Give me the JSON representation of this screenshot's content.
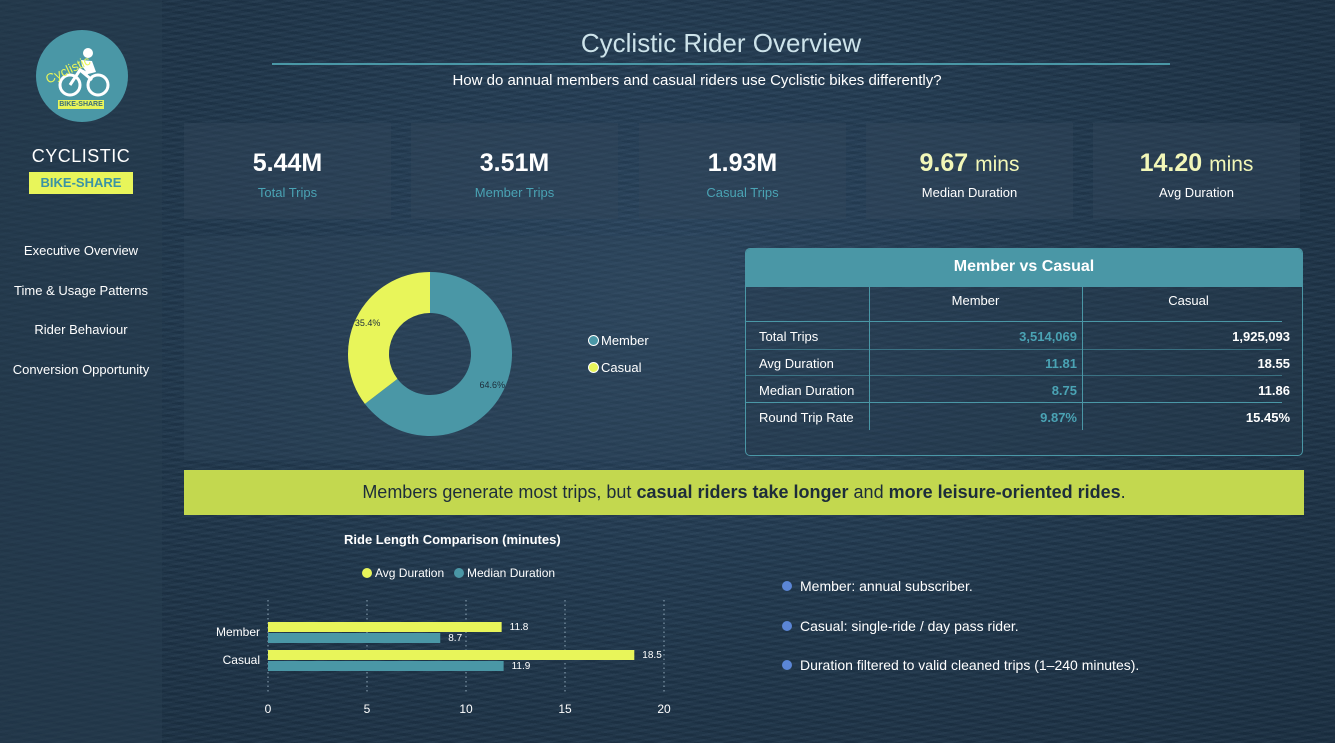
{
  "sidebar": {
    "logo_text": "Cyclistic",
    "logo_tag": "BIKE-SHARE",
    "brand": "CYCLISTIC",
    "badge": "BIKE-SHARE",
    "nav": [
      {
        "label": "Executive Overview"
      },
      {
        "label": "Time & Usage Patterns"
      },
      {
        "label": "Rider Behaviour"
      },
      {
        "label": "Conversion Opportunity"
      }
    ]
  },
  "header": {
    "title": "Cyclistic Rider Overview",
    "subtitle": "How do annual members and casual riders use Cyclistic bikes differently?"
  },
  "kpis": [
    {
      "value": "5.44M",
      "unit": "",
      "label": "Total Trips"
    },
    {
      "value": "3.51M",
      "unit": "",
      "label": "Member Trips"
    },
    {
      "value": "1.93M",
      "unit": "",
      "label": "Casual Trips"
    },
    {
      "value": "9.67",
      "unit": "mins",
      "label": "Median Duration"
    },
    {
      "value": "14.20",
      "unit": "mins",
      "label": "Avg Duration"
    }
  ],
  "donut": {
    "slices": [
      {
        "name": "Member",
        "value": 64.6,
        "label": "64.6%",
        "color": "#4a97a6"
      },
      {
        "name": "Casual",
        "value": 35.4,
        "label": "35.4%",
        "color": "#e8f55a"
      }
    ],
    "legend": [
      "Member",
      "Casual"
    ]
  },
  "comparison_table": {
    "title": "Member vs Casual",
    "columns": [
      "Member",
      "Casual"
    ],
    "rows": [
      {
        "label": "Total Trips",
        "member": "3,514,069",
        "casual": "1,925,093"
      },
      {
        "label": "Avg Duration",
        "member": "11.81",
        "casual": "18.55"
      },
      {
        "label": "Median Duration",
        "member": "8.75",
        "casual": "11.86"
      },
      {
        "label": "Round Trip Rate",
        "member": "9.87%",
        "casual": "15.45%"
      }
    ]
  },
  "banner": {
    "part1": "Members generate most trips, but ",
    "bold1": "casual riders take longer",
    "part2": " and ",
    "bold2": "more leisure-oriented rides",
    "part3": "."
  },
  "chart_data": {
    "type": "bar",
    "orientation": "horizontal",
    "title": "Ride Length Comparison (minutes)",
    "categories": [
      "Member",
      "Casual"
    ],
    "series": [
      {
        "name": "Avg Duration",
        "values": [
          11.8,
          18.5
        ],
        "color": "#e8f55a"
      },
      {
        "name": "Median Duration",
        "values": [
          8.7,
          11.9
        ],
        "color": "#4a97a6"
      }
    ],
    "xlim": [
      0,
      20
    ],
    "xticks": [
      0,
      5,
      10,
      15,
      20
    ],
    "grid": true,
    "legend_position": "top"
  },
  "notes": [
    "Member: annual subscriber.",
    "Casual: single-ride / day pass rider.",
    "Duration filtered to valid cleaned trips (1–240 minutes)."
  ]
}
